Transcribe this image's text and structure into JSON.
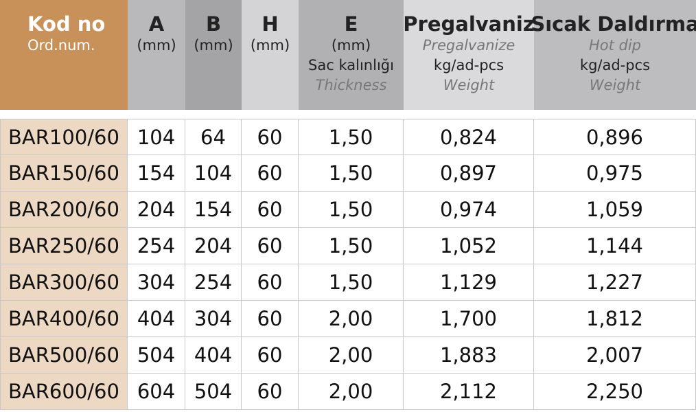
{
  "header": {
    "columns": [
      {
        "title": "Kod no",
        "lines": [
          "Ord.num."
        ]
      },
      {
        "title": "A",
        "lines": [
          "(mm)"
        ]
      },
      {
        "title": "B",
        "lines": [
          "(mm)"
        ]
      },
      {
        "title": "H",
        "lines": [
          "(mm)"
        ]
      },
      {
        "title": "E",
        "lines": [
          "(mm)",
          "Sac kalınlığı",
          "Thickness"
        ]
      },
      {
        "title": "Pregalvaniz",
        "lines": [
          "Pregalvanize",
          "kg/ad-pcs",
          "Weight"
        ]
      },
      {
        "title": "Sıcak Daldırma",
        "lines": [
          "Hot dip",
          "kg/ad-pcs",
          "Weight"
        ]
      }
    ]
  },
  "table": {
    "rows": [
      [
        "BAR100/60",
        "104",
        "64",
        "60",
        "1,50",
        "0,824",
        "0,896"
      ],
      [
        "BAR150/60",
        "154",
        "104",
        "60",
        "1,50",
        "0,897",
        "0,975"
      ],
      [
        "BAR200/60",
        "204",
        "154",
        "60",
        "1,50",
        "0,974",
        "1,059"
      ],
      [
        "BAR250/60",
        "254",
        "204",
        "60",
        "1,50",
        "1,052",
        "1,144"
      ],
      [
        "BAR300/60",
        "304",
        "254",
        "60",
        "1,50",
        "1,129",
        "1,227"
      ],
      [
        "BAR400/60",
        "404",
        "304",
        "60",
        "2,00",
        "1,700",
        "1,812"
      ],
      [
        "BAR500/60",
        "504",
        "404",
        "60",
        "2,00",
        "1,883",
        "2,007"
      ],
      [
        "BAR600/60",
        "604",
        "504",
        "60",
        "2,00",
        "2,112",
        "2,250"
      ]
    ]
  }
}
